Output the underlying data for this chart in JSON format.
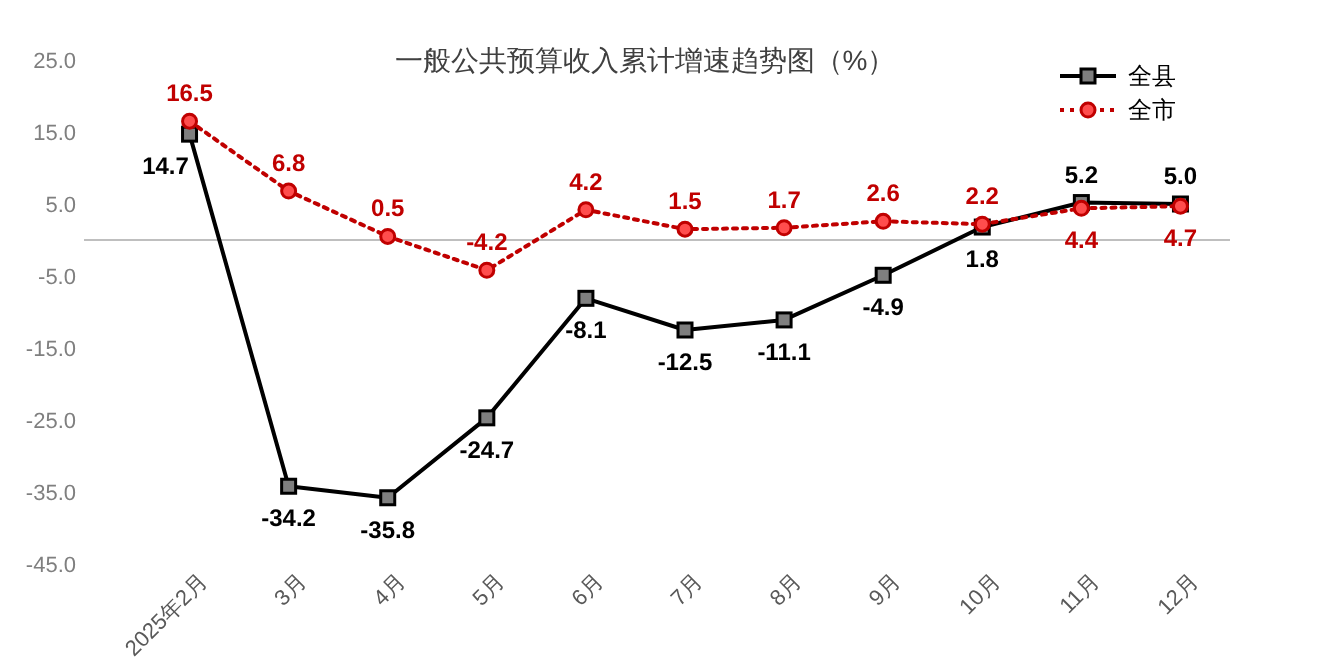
{
  "chart_data": {
    "type": "line",
    "title": "一般公共预算收入累计增速趋势图（%）",
    "categories": [
      "2025年2月",
      "3月",
      "4月",
      "5月",
      "6月",
      "7月",
      "8月",
      "9月",
      "10月",
      "11月",
      "12月"
    ],
    "series": [
      {
        "name": "全县",
        "color": "#000000",
        "marker": "square",
        "line_style": "solid",
        "values": [
          14.7,
          -34.2,
          -35.8,
          -24.7,
          -8.1,
          -12.5,
          -11.1,
          -4.9,
          1.8,
          5.2,
          5.0
        ],
        "value_labels": [
          "14.7",
          "-34.2",
          "-35.8",
          "-24.7",
          "-8.1",
          "-12.5",
          "-11.1",
          "-4.9",
          "1.8",
          "5.2",
          "5.0"
        ]
      },
      {
        "name": "全市",
        "color": "#c00000",
        "marker": "circle",
        "line_style": "dotted",
        "values": [
          16.5,
          6.8,
          0.5,
          -4.2,
          4.2,
          1.5,
          1.7,
          2.6,
          2.2,
          4.4,
          4.7
        ],
        "value_labels": [
          "16.5",
          "6.8",
          "0.5",
          "-4.2",
          "4.2",
          "1.5",
          "1.7",
          "2.6",
          "2.2",
          "4.4",
          "4.7"
        ]
      }
    ],
    "ylim": [
      -45,
      25
    ],
    "yticks": [
      {
        "value": -45,
        "label": "-45.0"
      },
      {
        "value": -35,
        "label": "-35.0"
      },
      {
        "value": -25,
        "label": "-25.0"
      },
      {
        "value": -15,
        "label": "-15.0"
      },
      {
        "value": -5,
        "label": "-5.0"
      },
      {
        "value": 5,
        "label": "5.0"
      },
      {
        "value": 15,
        "label": "15.0"
      },
      {
        "value": 25,
        "label": "25.0"
      }
    ],
    "grid": false,
    "legend": "top right"
  }
}
